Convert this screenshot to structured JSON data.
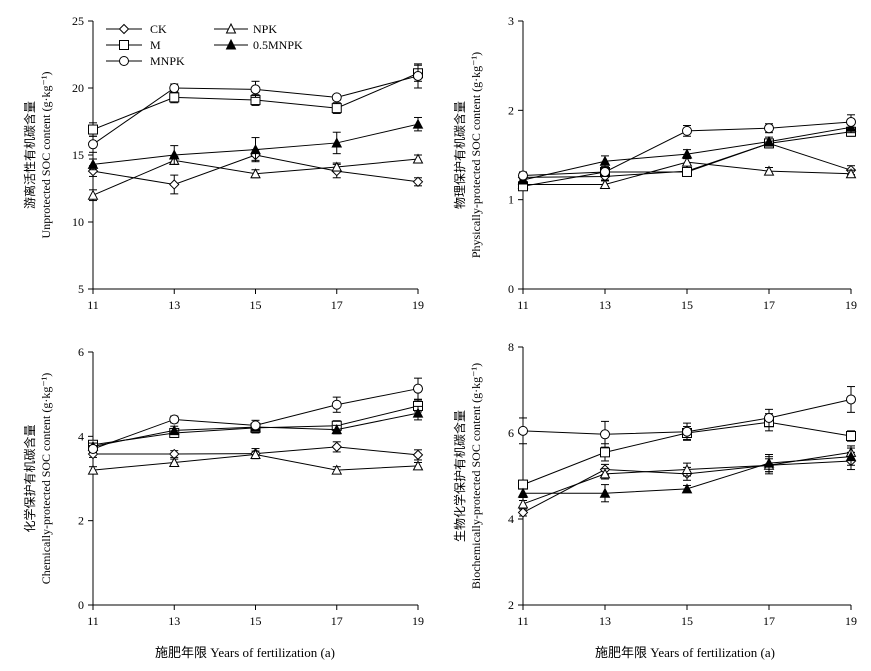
{
  "figure": {
    "xlabel": "施肥年限 Years of fertilization (a)"
  },
  "legend": [
    "CK",
    "NPK",
    "M",
    "0.5MNPK",
    "MNPK"
  ],
  "chart_data": [
    {
      "type": "line",
      "ylabel_cn": "游离活性有机碳含量",
      "ylabel_en": "Unprotected SOC content (g·kg⁻¹)",
      "x": [
        11,
        13,
        15,
        17,
        19
      ],
      "xticks": [
        11,
        13,
        15,
        17,
        19
      ],
      "ylim": [
        5,
        25
      ],
      "yticks": [
        5,
        10,
        15,
        20,
        25
      ],
      "series": [
        {
          "name": "CK",
          "marker": "diamond",
          "values": [
            13.8,
            12.8,
            15.0,
            13.8,
            13.0
          ],
          "err": [
            0.4,
            0.7,
            0.4,
            0.5,
            0.3
          ]
        },
        {
          "name": "NPK",
          "marker": "triangle-open",
          "values": [
            12.0,
            14.6,
            13.6,
            14.1,
            14.7
          ],
          "err": [
            0.4,
            0.3,
            0.3,
            0.3,
            0.3
          ]
        },
        {
          "name": "M",
          "marker": "square",
          "values": [
            16.9,
            19.3,
            19.1,
            18.5,
            21.1
          ],
          "err": [
            0.5,
            0.4,
            0.4,
            0.4,
            0.6
          ]
        },
        {
          "name": "0.5MNPK",
          "marker": "triangle-filled",
          "values": [
            14.3,
            15.0,
            15.4,
            15.9,
            17.3
          ],
          "err": [
            0.4,
            0.7,
            0.9,
            0.8,
            0.5
          ]
        },
        {
          "name": "MNPK",
          "marker": "circle",
          "values": [
            15.8,
            20.0,
            19.9,
            19.3,
            20.9
          ],
          "err": [
            0.6,
            0.3,
            0.6,
            0.2,
            0.9
          ]
        }
      ]
    },
    {
      "type": "line",
      "ylabel_cn": "物理保护有机碳含量",
      "ylabel_en": "Physically-protected SOC content (g·kg⁻¹)",
      "x": [
        11,
        13,
        15,
        17,
        19
      ],
      "xticks": [
        11,
        13,
        15,
        17,
        19
      ],
      "ylim": [
        0,
        3
      ],
      "yticks": [
        0,
        1,
        2,
        3
      ],
      "series": [
        {
          "name": "CK",
          "marker": "diamond",
          "values": [
            1.25,
            1.26,
            1.32,
            1.63,
            1.33
          ],
          "err": [
            0.04,
            0.04,
            0.04,
            0.04,
            0.05
          ]
        },
        {
          "name": "NPK",
          "marker": "triangle-open",
          "values": [
            1.17,
            1.17,
            1.42,
            1.32,
            1.29
          ],
          "err": [
            0.04,
            0.04,
            0.04,
            0.04,
            0.04
          ]
        },
        {
          "name": "M",
          "marker": "square",
          "values": [
            1.15,
            1.31,
            1.31,
            1.63,
            1.76
          ],
          "err": [
            0.04,
            0.04,
            0.04,
            0.05,
            0.05
          ]
        },
        {
          "name": "0.5MNPK",
          "marker": "triangle-filled",
          "values": [
            1.22,
            1.43,
            1.51,
            1.65,
            1.81
          ],
          "err": [
            0.04,
            0.06,
            0.05,
            0.05,
            0.06
          ]
        },
        {
          "name": "MNPK",
          "marker": "circle",
          "values": [
            1.27,
            1.31,
            1.77,
            1.8,
            1.87
          ],
          "err": [
            0.04,
            0.04,
            0.06,
            0.05,
            0.08
          ]
        }
      ]
    },
    {
      "type": "line",
      "ylabel_cn": "化学保护有机碳含量",
      "ylabel_en": "Chemically-protected SOC content (g·kg⁻¹)",
      "x": [
        11,
        13,
        15,
        17,
        19
      ],
      "xticks": [
        11,
        13,
        15,
        17,
        19
      ],
      "ylim": [
        0,
        6
      ],
      "yticks": [
        0,
        2,
        4,
        6
      ],
      "series": [
        {
          "name": "CK",
          "marker": "diamond",
          "values": [
            3.58,
            3.58,
            3.59,
            3.75,
            3.56
          ],
          "err": [
            0.08,
            0.08,
            0.12,
            0.12,
            0.12
          ]
        },
        {
          "name": "NPK",
          "marker": "triangle-open",
          "values": [
            3.2,
            3.38,
            3.57,
            3.2,
            3.3
          ],
          "err": [
            0.08,
            0.08,
            0.08,
            0.08,
            0.08
          ]
        },
        {
          "name": "M",
          "marker": "square",
          "values": [
            3.8,
            4.08,
            4.2,
            4.25,
            4.72
          ],
          "err": [
            0.08,
            0.1,
            0.12,
            0.12,
            0.14
          ]
        },
        {
          "name": "0.5MNPK",
          "marker": "triangle-filled",
          "values": [
            3.76,
            4.14,
            4.22,
            4.16,
            4.55
          ],
          "err": [
            0.08,
            0.1,
            0.1,
            0.1,
            0.16
          ]
        },
        {
          "name": "MNPK",
          "marker": "circle",
          "values": [
            3.7,
            4.4,
            4.26,
            4.75,
            5.13
          ],
          "err": [
            0.08,
            0.08,
            0.12,
            0.18,
            0.25
          ]
        }
      ]
    },
    {
      "type": "line",
      "ylabel_cn": "生物化学保护有机碳含量",
      "ylabel_en": "Biochemically-protected SOC content (g·kg⁻¹)",
      "x": [
        11,
        13,
        15,
        17,
        19
      ],
      "xticks": [
        11,
        13,
        15,
        17,
        19
      ],
      "ylim": [
        2,
        8
      ],
      "yticks": [
        2,
        4,
        6,
        8
      ],
      "series": [
        {
          "name": "CK",
          "marker": "diamond",
          "values": [
            4.15,
            5.15,
            5.05,
            5.25,
            5.35
          ],
          "err": [
            0.08,
            0.12,
            0.15,
            0.2,
            0.2
          ]
        },
        {
          "name": "NPK",
          "marker": "triangle-open",
          "values": [
            4.35,
            5.05,
            5.15,
            5.25,
            5.55
          ],
          "err": [
            0.08,
            0.12,
            0.15,
            0.15,
            0.15
          ]
        },
        {
          "name": "M",
          "marker": "square",
          "values": [
            4.8,
            5.55,
            6.0,
            6.25,
            5.93
          ],
          "err": [
            0.1,
            0.2,
            0.15,
            0.2,
            0.12
          ]
        },
        {
          "name": "0.5MNPK",
          "marker": "triangle-filled",
          "values": [
            4.6,
            4.6,
            4.7,
            5.3,
            5.45
          ],
          "err": [
            0.1,
            0.2,
            0.08,
            0.2,
            0.2
          ]
        },
        {
          "name": "MNPK",
          "marker": "circle",
          "values": [
            6.05,
            5.97,
            6.03,
            6.35,
            6.78
          ],
          "err": [
            0.3,
            0.3,
            0.2,
            0.2,
            0.3
          ]
        }
      ]
    }
  ]
}
